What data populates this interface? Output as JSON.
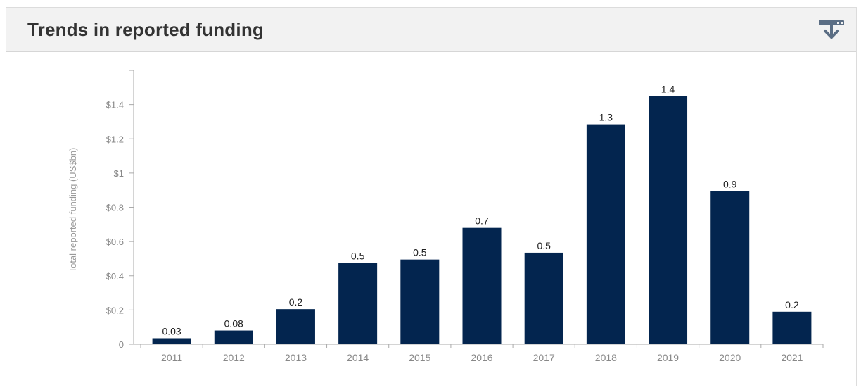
{
  "header": {
    "title": "Trends in reported funding",
    "download_icon": "download-icon"
  },
  "chart_data": {
    "type": "bar",
    "ylabel": "Total reported funding (US$bn)",
    "xlabel": "",
    "ylim": [
      0,
      1.6
    ],
    "yticks": [
      {
        "value": 0,
        "label": "0"
      },
      {
        "value": 0.2,
        "label": "$0.2"
      },
      {
        "value": 0.4,
        "label": "$0.4"
      },
      {
        "value": 0.6,
        "label": "$0.6"
      },
      {
        "value": 0.8,
        "label": "$0.8"
      },
      {
        "value": 1.0,
        "label": "$1"
      },
      {
        "value": 1.2,
        "label": "$1.2"
      },
      {
        "value": 1.4,
        "label": "$1.4"
      }
    ],
    "categories": [
      "2011",
      "2012",
      "2013",
      "2014",
      "2015",
      "2016",
      "2017",
      "2018",
      "2019",
      "2020",
      "2021"
    ],
    "values": [
      0.035,
      0.08,
      0.205,
      0.475,
      0.495,
      0.68,
      0.535,
      1.285,
      1.45,
      0.895,
      0.19
    ],
    "data_labels": [
      "0.03",
      "0.08",
      "0.2",
      "0.5",
      "0.5",
      "0.7",
      "0.5",
      "1.3",
      "1.4",
      "0.9",
      "0.2"
    ],
    "bar_color": "#03254f",
    "grid": false
  }
}
